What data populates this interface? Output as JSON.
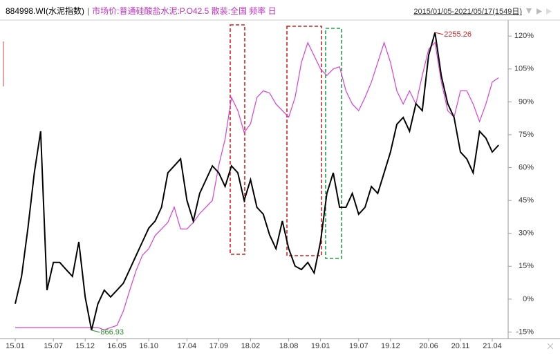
{
  "chart_data": {
    "type": "line",
    "title": "884998.WI(水泥指数)",
    "separator": "|",
    "subtitle": "市场价:普通硅酸盐水泥:P.O42.5 散装:全国 频率 日",
    "date_range": "2015/01/05-2021/05/17(1549日)",
    "x": [
      "15.01",
      "15.02",
      "15.03",
      "15.04",
      "15.05",
      "15.06",
      "15.07",
      "15.08",
      "15.09",
      "15.10",
      "15.11",
      "15.12",
      "16.01",
      "16.02",
      "16.03",
      "16.04",
      "16.05",
      "16.06",
      "16.07",
      "16.08",
      "16.09",
      "16.10",
      "16.11",
      "16.12",
      "17.01",
      "17.02",
      "17.03",
      "17.04",
      "17.05",
      "17.06",
      "17.07",
      "17.08",
      "17.09",
      "17.10",
      "17.11",
      "17.12",
      "18.01",
      "18.02",
      "18.03",
      "18.04",
      "18.05",
      "18.06",
      "18.07",
      "18.08",
      "18.09",
      "18.10",
      "18.11",
      "18.12",
      "19.01",
      "19.02",
      "19.03",
      "19.04",
      "19.05",
      "19.06",
      "19.07",
      "19.08",
      "19.09",
      "19.10",
      "19.11",
      "19.12",
      "20.01",
      "20.02",
      "20.03",
      "20.04",
      "20.05",
      "20.06",
      "20.07",
      "20.08",
      "20.09",
      "20.10",
      "20.11",
      "20.12",
      "21.01",
      "21.02",
      "21.03",
      "21.04",
      "21.05"
    ],
    "xticks": [
      "15.01",
      "15.07",
      "15.12",
      "16.05",
      "16.10",
      "17.04",
      "17.09",
      "18.02",
      "18.08",
      "19.01",
      "19.07",
      "19.12",
      "20.06",
      "20.11",
      "21.04"
    ],
    "ylim": [
      828,
      2310
    ],
    "y2lim": [
      -18,
      127
    ],
    "y2ticks": [
      {
        "value": 120,
        "label": "120%"
      },
      {
        "value": 105,
        "label": "105%"
      },
      {
        "value": 90,
        "label": "90%"
      },
      {
        "value": 75,
        "label": "75%"
      },
      {
        "value": 60,
        "label": "60%"
      },
      {
        "value": 45,
        "label": "45%"
      },
      {
        "value": 30,
        "label": "30%"
      },
      {
        "value": 15,
        "label": "15%"
      },
      {
        "value": 0,
        "label": "0%"
      },
      {
        "value": -15,
        "label": "-15%"
      }
    ],
    "series": [
      {
        "name": "884998.WI(水泥指数)",
        "color": "#000000",
        "axis": "y",
        "values": [
          990,
          1118,
          1343,
          1600,
          1795,
          1054,
          1183,
          1183,
          1150,
          1118,
          1279,
          1022,
          866.93,
          990,
          1054,
          1022,
          1054,
          1086,
          1150,
          1215,
          1279,
          1343,
          1376,
          1440,
          1601,
          1633,
          1666,
          1472,
          1376,
          1505,
          1569,
          1633,
          1601,
          1537,
          1633,
          1601,
          1472,
          1569,
          1440,
          1408,
          1311,
          1247,
          1376,
          1247,
          1166,
          1150,
          1183,
          1134,
          1279,
          1505,
          1601,
          1440,
          1440,
          1505,
          1408,
          1440,
          1537,
          1505,
          1601,
          1698,
          1827,
          1859,
          1795,
          1923,
          1891,
          2149,
          2255.26,
          2052,
          1923,
          1859,
          1698,
          1666,
          1601,
          1795,
          1763,
          1698,
          1730
        ]
      },
      {
        "name": "市场价:普通硅酸盐水泥:P.O42.5 散装:全国",
        "color": "#d63fd6",
        "axis": "y2",
        "values": [
          -13,
          -13,
          -13,
          -13,
          -13,
          -13,
          -13,
          -13,
          -13,
          -13,
          -13,
          -13,
          -13,
          -13,
          -14,
          -13,
          -12,
          -5.5,
          4,
          13,
          20,
          23,
          29,
          32,
          35,
          42,
          32,
          32,
          35,
          39,
          42,
          45,
          61,
          73,
          92,
          86,
          76,
          80,
          92,
          95,
          94,
          89,
          86,
          83,
          92,
          108,
          117,
          111,
          105,
          102,
          105,
          106,
          95,
          89,
          86,
          92,
          99,
          108,
          117,
          108,
          95,
          89,
          95,
          89,
          102,
          114,
          117,
          99,
          86,
          83,
          95,
          95,
          89,
          81,
          89,
          99,
          101
        ]
      }
    ],
    "annotations": [
      {
        "label": "2255.26",
        "x": "20.07",
        "value": 2255.26,
        "color": "#cc2222"
      },
      {
        "label": "866.93",
        "x": "16.01",
        "value": 866.93,
        "color": "#2a8a2a"
      }
    ]
  }
}
